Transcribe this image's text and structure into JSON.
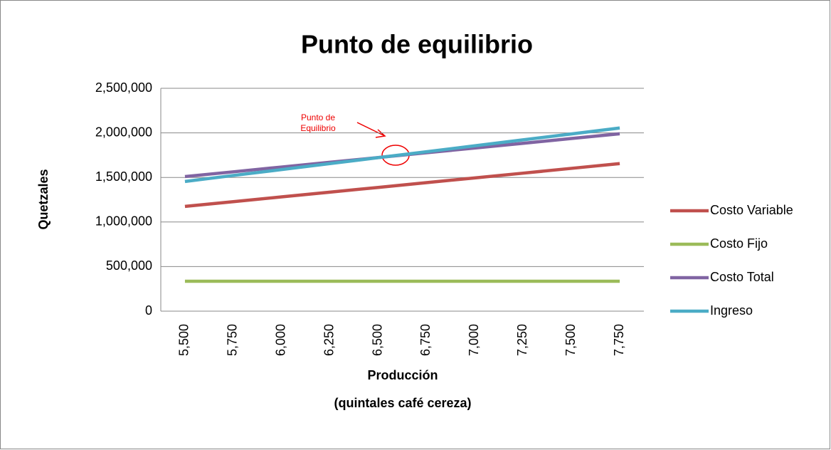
{
  "chart_data": {
    "type": "line",
    "title": "Punto de equilibrio",
    "xlabel": [
      "Producción",
      "(quintales café cereza)"
    ],
    "ylabel": "Quetzales",
    "annotation": [
      "Punto de",
      "Equilibrio"
    ],
    "categories": [
      "5,500",
      "5,750",
      "6,000",
      "6,250",
      "6,500",
      "6,750",
      "7,000",
      "7,250",
      "7,500",
      "7,750"
    ],
    "series": [
      {
        "name": "Costo Variable",
        "color": "#c0504d",
        "values": [
          1175000,
          1228000,
          1282000,
          1335000,
          1388000,
          1442000,
          1495000,
          1548000,
          1602000,
          1655000
        ]
      },
      {
        "name": "Costo Fijo",
        "color": "#9bbb59",
        "values": [
          335000,
          335000,
          335000,
          335000,
          335000,
          335000,
          335000,
          335000,
          335000,
          335000
        ]
      },
      {
        "name": "Costo Total",
        "color": "#8064a2",
        "values": [
          1510000,
          1563000,
          1617000,
          1670000,
          1723000,
          1777000,
          1830000,
          1883000,
          1937000,
          1990000
        ]
      },
      {
        "name": "Ingreso",
        "color": "#4bacc6",
        "values": [
          1455000,
          1522000,
          1588000,
          1655000,
          1722000,
          1788000,
          1855000,
          1922000,
          1988000,
          2055000
        ]
      }
    ],
    "ylim": [
      0,
      2500000
    ],
    "yticks": [
      0,
      {
        "value": 500000,
        "label": "500,000"
      },
      {
        "value": 1000000,
        "label": "1,000,000"
      },
      {
        "value": 1500000,
        "label": "1,500,000"
      },
      {
        "value": 2000000,
        "label": "2,000,000"
      },
      {
        "value": 2500000,
        "label": "2,500,000"
      }
    ],
    "grid": true,
    "legend": "right"
  }
}
